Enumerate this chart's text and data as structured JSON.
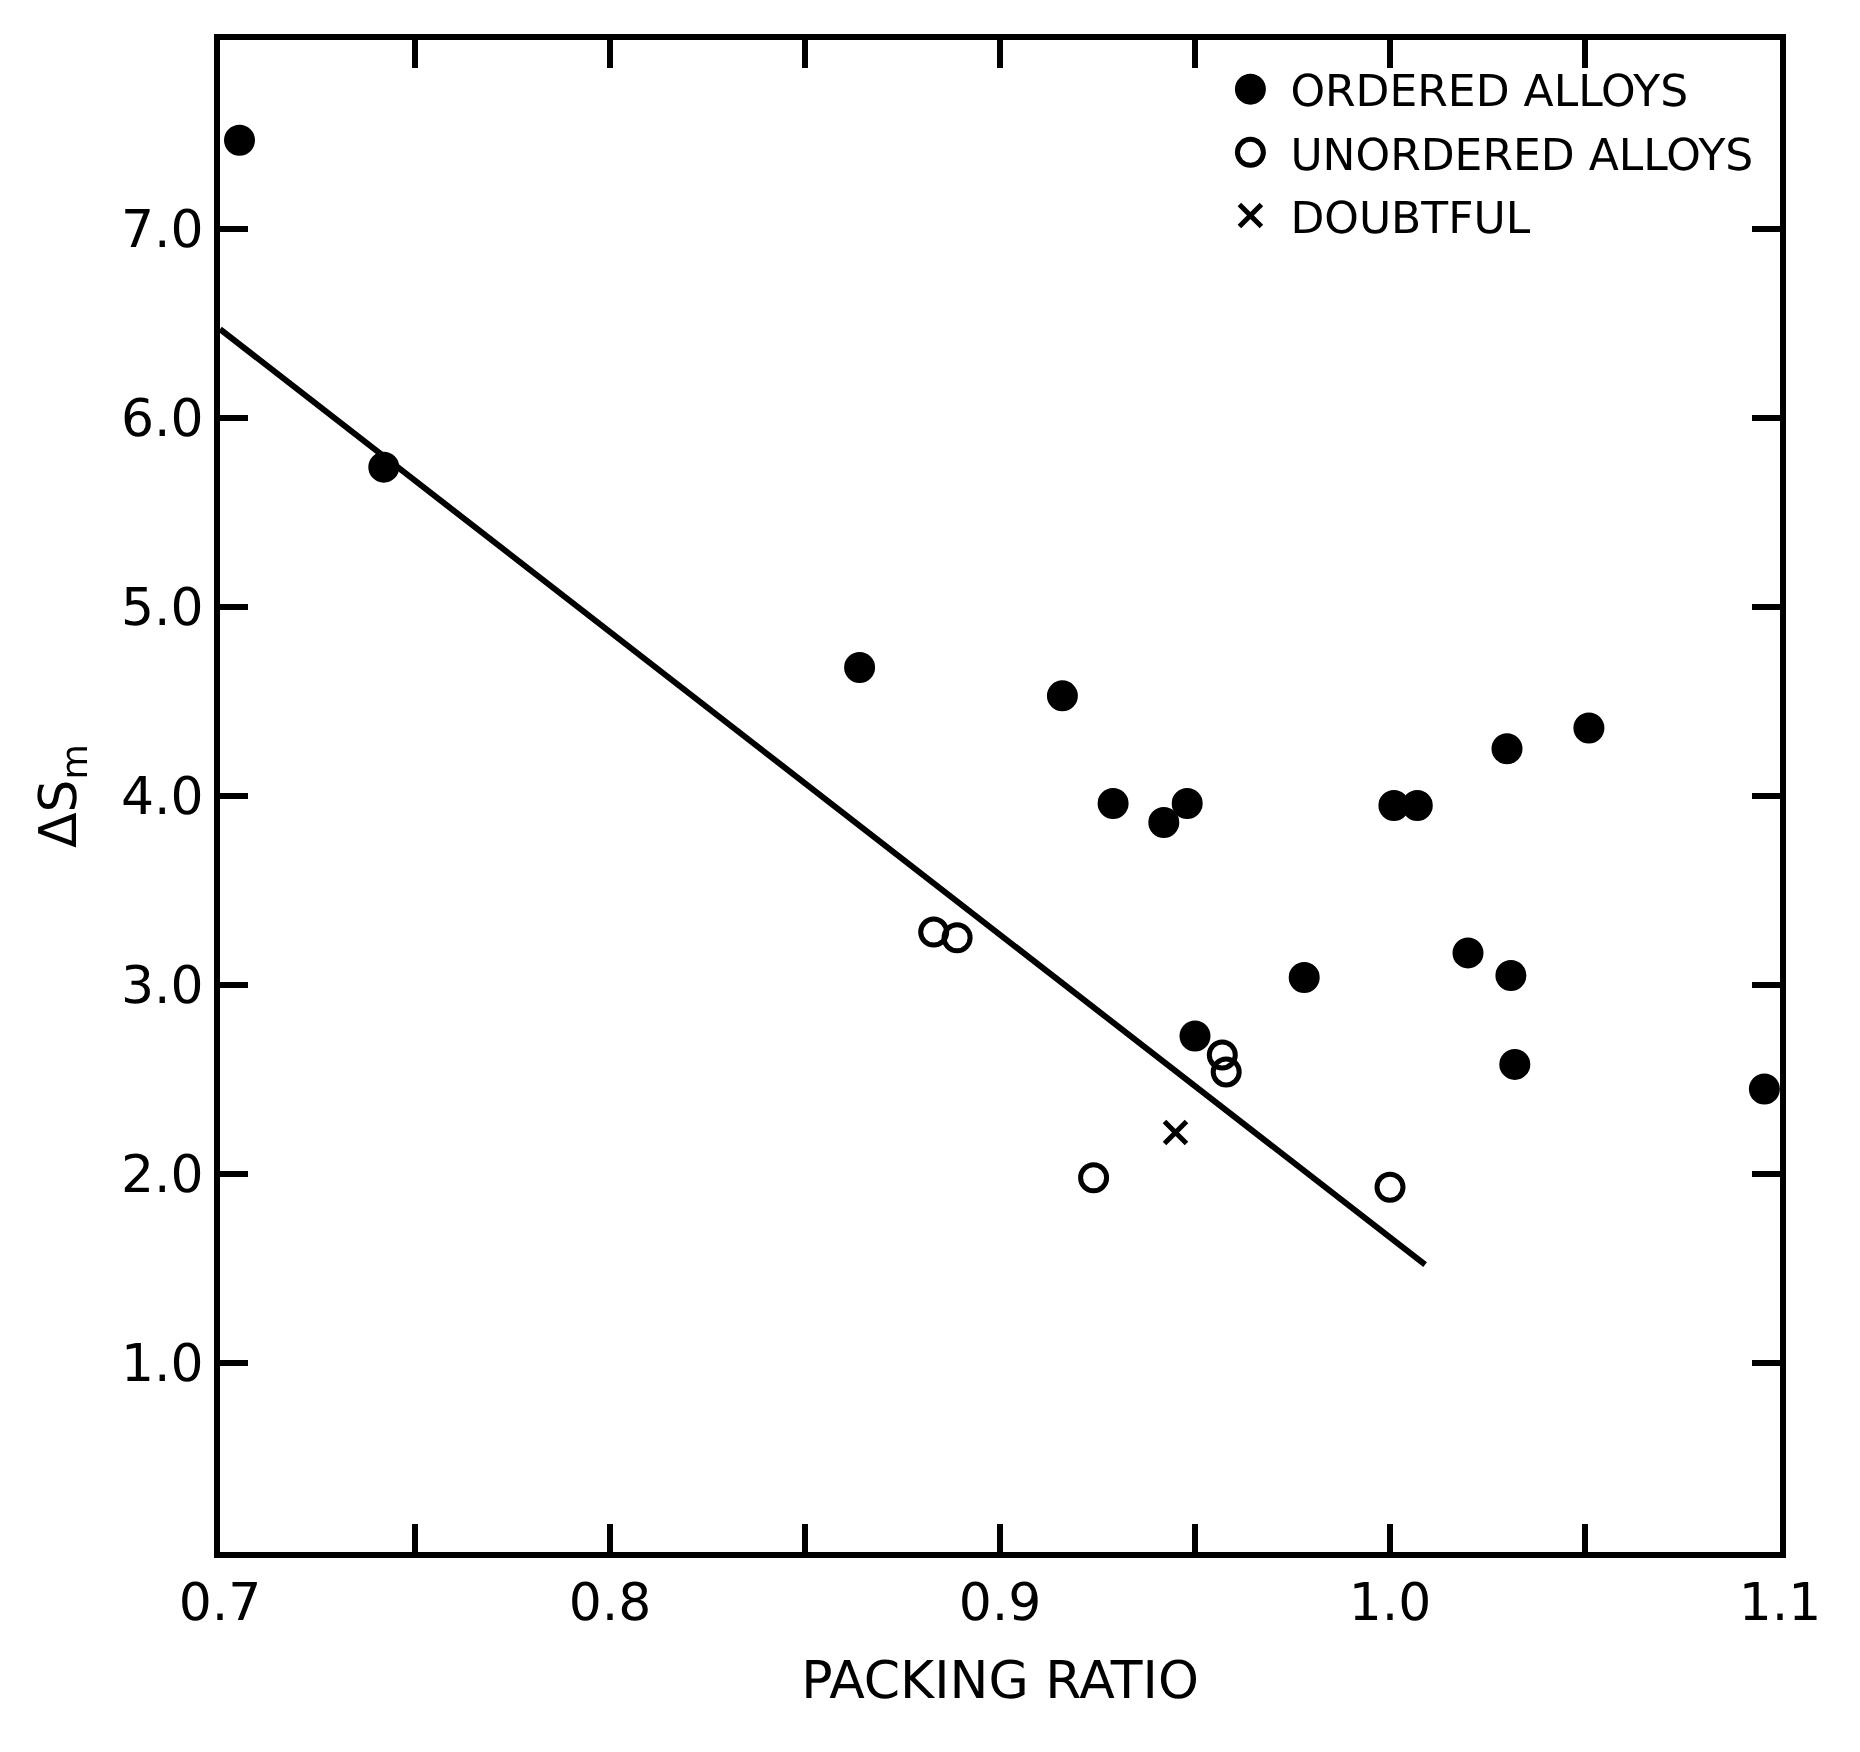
{
  "chart_data": {
    "type": "scatter",
    "xlabel": "PACKING RATIO",
    "ylabel": "ΔS$_{m}$",
    "xlim": [
      0.7,
      1.1
    ],
    "ylim": [
      0,
      8
    ],
    "xticks": [
      {
        "value": 0.7,
        "label": "0.7"
      },
      {
        "value": 0.75,
        "label": null
      },
      {
        "value": 0.8,
        "label": "0.8"
      },
      {
        "value": 0.85,
        "label": null
      },
      {
        "value": 0.9,
        "label": "0.9"
      },
      {
        "value": 0.95,
        "label": null
      },
      {
        "value": 1.0,
        "label": "1.0"
      },
      {
        "value": 1.05,
        "label": null
      },
      {
        "value": 1.1,
        "label": "1.1"
      }
    ],
    "yticks": [
      {
        "value": 1,
        "label": "1.0"
      },
      {
        "value": 2,
        "label": "2.0"
      },
      {
        "value": 3,
        "label": "3.0"
      },
      {
        "value": 4,
        "label": "4.0"
      },
      {
        "value": 5,
        "label": "5.0"
      },
      {
        "value": 6,
        "label": "6.0"
      },
      {
        "value": 7,
        "label": "7.0"
      }
    ],
    "legend": "top right",
    "series": [
      {
        "name": "ORDERED ALLOYS",
        "color": "#000000",
        "marker": "circle",
        "x": [
          0.705,
          0.742,
          0.864,
          0.916,
          0.929,
          0.948,
          0.942,
          1.001,
          1.007,
          1.03,
          1.051,
          0.978,
          1.02,
          1.031,
          1.032,
          1.096,
          0.95
        ],
        "values": [
          7.47,
          5.74,
          4.68,
          4.53,
          3.96,
          3.96,
          3.86,
          3.95,
          3.95,
          4.25,
          4.36,
          3.04,
          3.17,
          3.05,
          2.58,
          2.45,
          2.73
        ]
      },
      {
        "name": "UNORDERED ALLOYS",
        "color": "#000000",
        "marker": "circle-open",
        "x": [
          0.883,
          0.889,
          0.957,
          0.958,
          0.924,
          1.0
        ],
        "values": [
          3.28,
          3.25,
          2.63,
          2.54,
          1.98,
          1.93
        ]
      },
      {
        "name": "DOUBTFUL",
        "color": "#000000",
        "marker": "x",
        "x": [
          0.945
        ],
        "values": [
          2.22
        ]
      },
      {
        "type": "line",
        "color": "#000000",
        "marker": "none",
        "line_style": "solid",
        "x": [
          0.7,
          1.009
        ],
        "values": [
          6.47,
          1.52
        ]
      }
    ]
  }
}
